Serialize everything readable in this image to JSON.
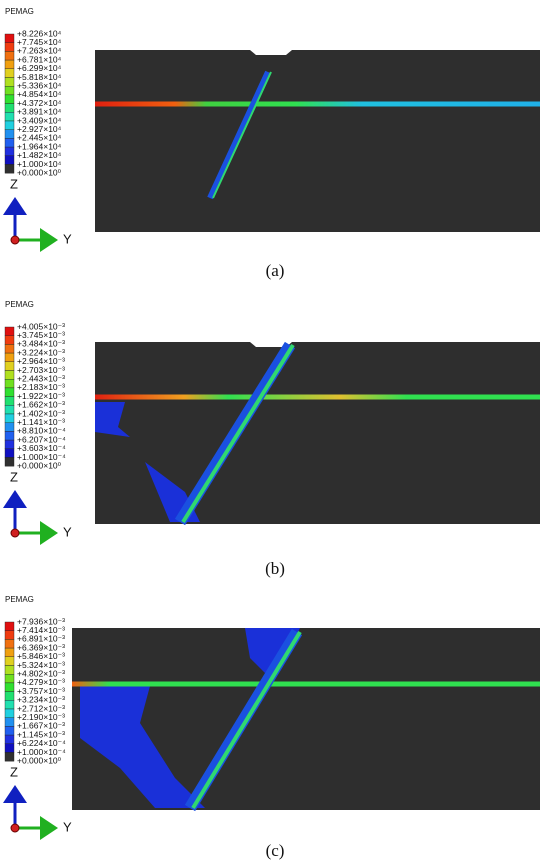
{
  "panels": [
    {
      "variable": "PEMAG",
      "legend": [
        "+8.226×10⁴",
        "+7.745×10⁴",
        "+7.263×10⁴",
        "+6.781×10⁴",
        "+6.299×10⁴",
        "+5.818×10⁴",
        "+5.336×10⁴",
        "+4.854×10⁴",
        "+4.372×10⁴",
        "+3.891×10⁴",
        "+3.409×10⁴",
        "+2.927×10⁴",
        "+2.445×10⁴",
        "+1.964×10⁴",
        "+1.482×10⁴",
        "+1.000×10⁴",
        "+0.000×10⁰"
      ],
      "axes": {
        "vertical": "Z",
        "horizontal": "Y"
      },
      "caption": "(a)"
    },
    {
      "variable": "PEMAG",
      "legend": [
        "+4.005×10⁻³",
        "+3.745×10⁻³",
        "+3.484×10⁻³",
        "+3.224×10⁻³",
        "+2.964×10⁻³",
        "+2.703×10⁻³",
        "+2.443×10⁻³",
        "+2.183×10⁻³",
        "+1.922×10⁻³",
        "+1.662×10⁻³",
        "+1.402×10⁻³",
        "+1.141×10⁻³",
        "+8.810×10⁻⁴",
        "+6.207×10⁻⁴",
        "+3.603×10⁻⁴",
        "+1.000×10⁻⁴",
        "+0.000×10⁰"
      ],
      "axes": {
        "vertical": "Z",
        "horizontal": "Y"
      },
      "caption": "(b)"
    },
    {
      "variable": "PEMAG",
      "legend": [
        "+7.936×10⁻³",
        "+7.414×10⁻³",
        "+6.891×10⁻³",
        "+6.369×10⁻³",
        "+5.846×10⁻³",
        "+5.324×10⁻³",
        "+4.802×10⁻³",
        "+4.279×10⁻³",
        "+3.757×10⁻³",
        "+3.234×10⁻³",
        "+2.712×10⁻³",
        "+2.190×10⁻³",
        "+1.667×10⁻³",
        "+1.145×10⁻³",
        "+6.224×10⁻⁴",
        "+1.000×10⁻⁴",
        "+0.000×10⁰"
      ],
      "axes": {
        "vertical": "Z",
        "horizontal": "Y"
      },
      "caption": "(c)"
    }
  ]
}
